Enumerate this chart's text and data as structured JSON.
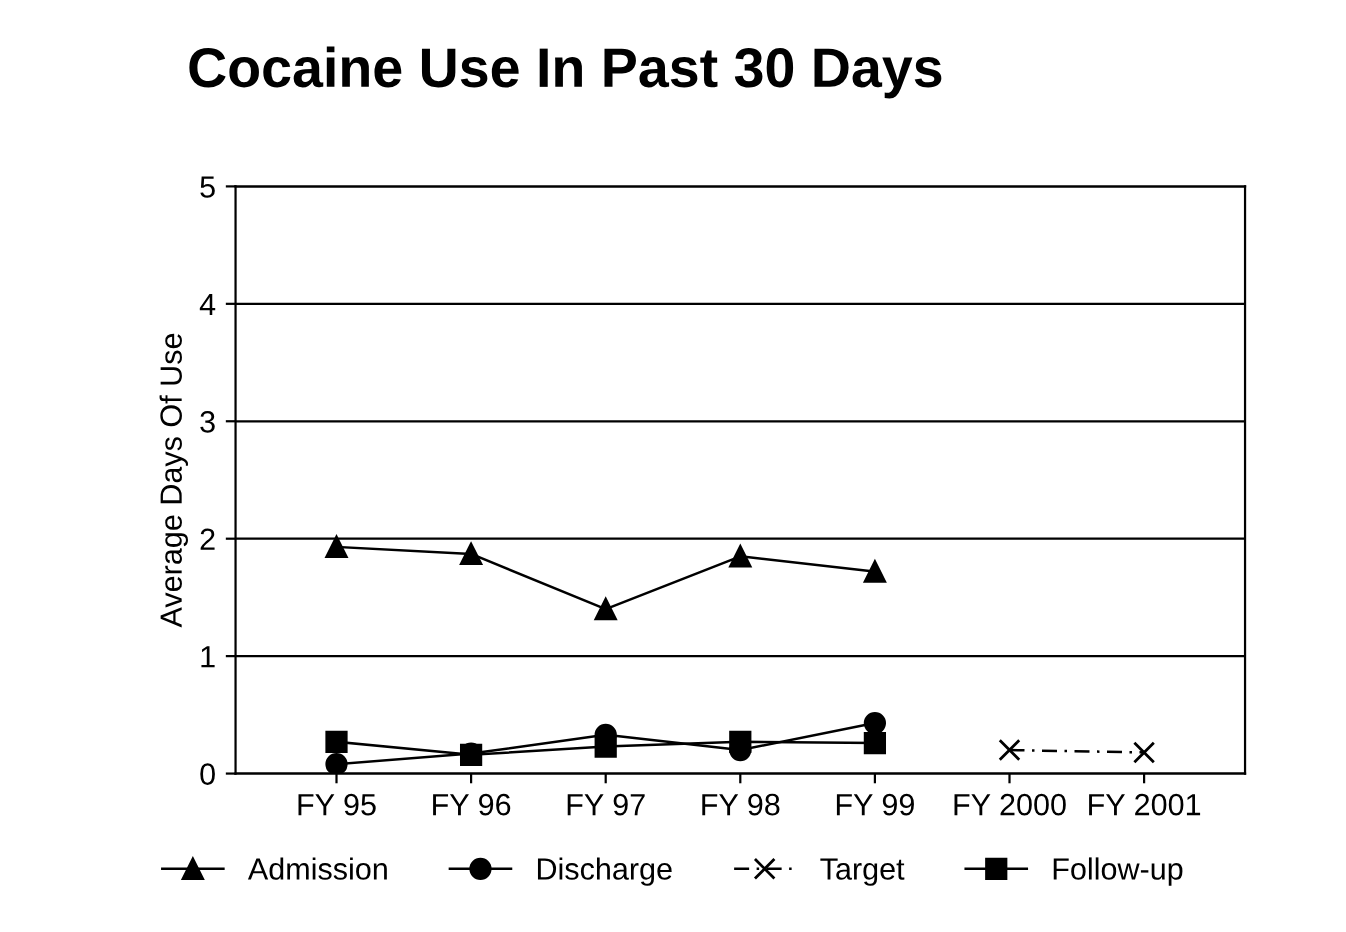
{
  "chart_data": {
    "type": "line",
    "title": "Cocaine Use In Past 30 Days",
    "ylabel": "Average Days Of Use",
    "categories": [
      "FY 95",
      "FY 96",
      "FY 97",
      "FY 98",
      "FY 99",
      "FY 2000",
      "FY 2001"
    ],
    "ylim": [
      0,
      5
    ],
    "yticks": [
      0,
      1,
      2,
      3,
      4,
      5
    ],
    "grid": "y",
    "legend": "bottom",
    "series": [
      {
        "name": "Admission",
        "color": "#000000",
        "marker": "triangle",
        "line_style": "solid",
        "values": [
          1.93,
          1.87,
          1.4,
          1.85,
          1.72,
          null,
          null
        ]
      },
      {
        "name": "Discharge",
        "color": "#000000",
        "marker": "circle",
        "line_style": "solid",
        "values": [
          0.08,
          0.17,
          0.33,
          0.2,
          0.43,
          null,
          null
        ]
      },
      {
        "name": "Target",
        "color": "#000000",
        "marker": "cross",
        "line_style": "dashed",
        "values": [
          null,
          null,
          null,
          null,
          null,
          0.2,
          0.18
        ]
      },
      {
        "name": "Follow-up",
        "color": "#000000",
        "marker": "square",
        "line_style": "solid",
        "values": [
          0.27,
          0.16,
          0.23,
          0.27,
          0.26,
          null,
          null
        ]
      }
    ]
  }
}
